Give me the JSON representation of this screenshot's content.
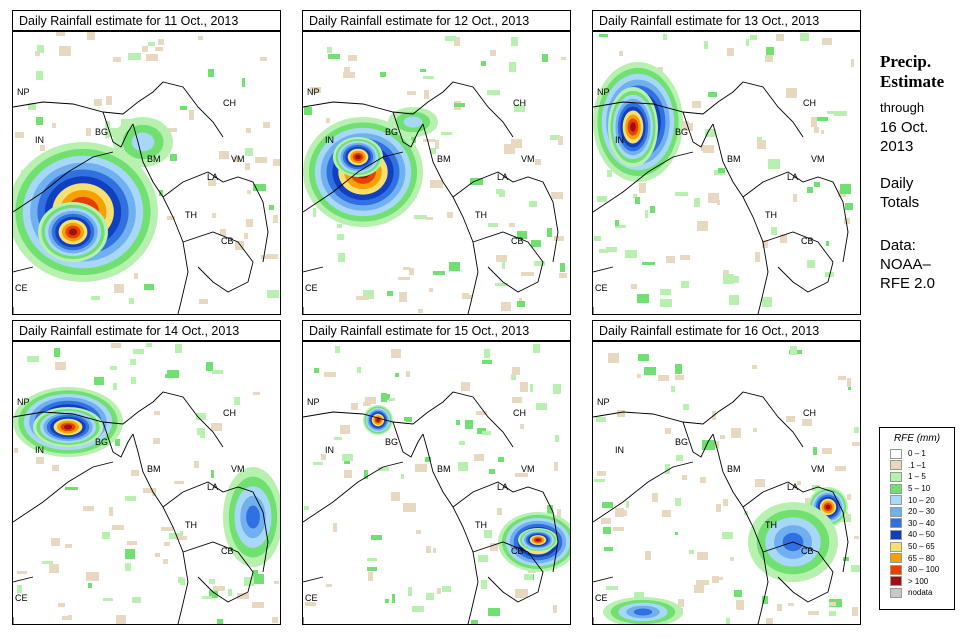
{
  "panels": [
    {
      "title": "Daily Rainfall estimate for  11 Oct., 2013",
      "labels": {
        "NP": "NP",
        "IN": "IN",
        "BG": "BG",
        "BM": "BM",
        "CH": "CH",
        "VM": "VM",
        "LA": "LA",
        "TH": "TH",
        "CB": "CB",
        "CE": "CE"
      },
      "rain_center": "bay-of-bengal-cyclone"
    },
    {
      "title": "Daily Rainfall estimate for  12 Oct., 2013",
      "labels": {
        "NP": "NP",
        "IN": "IN",
        "BG": "BG",
        "BM": "BM",
        "CH": "CH",
        "VM": "VM",
        "LA": "LA",
        "TH": "TH",
        "CB": "CB",
        "CE": "CE"
      },
      "rain_center": "cyclone-near-coast"
    },
    {
      "title": "Daily Rainfall estimate for  13 Oct., 2013",
      "labels": {
        "NP": "NP",
        "IN": "IN",
        "BG": "BG",
        "BM": "BM",
        "CH": "CH",
        "VM": "VM",
        "LA": "LA",
        "TH": "TH",
        "CB": "CB",
        "CE": "CE"
      },
      "rain_center": "landfall-india"
    },
    {
      "title": "Daily Rainfall estimate for  14 Oct., 2013",
      "labels": {
        "NP": "NP",
        "IN": "IN",
        "BG": "BG",
        "BM": "BM",
        "CH": "CH",
        "VM": "VM",
        "LA": "LA",
        "TH": "TH",
        "CB": "CB",
        "CE": "CE"
      },
      "rain_center": "north-india-nepal"
    },
    {
      "title": "Daily Rainfall estimate for  15 Oct., 2013",
      "labels": {
        "NP": "NP",
        "IN": "IN",
        "BG": "BG",
        "BM": "BM",
        "CH": "CH",
        "VM": "VM",
        "LA": "LA",
        "TH": "TH",
        "CB": "CB",
        "CE": "CE"
      },
      "rain_center": "thailand-cambodia"
    },
    {
      "title": "Daily Rainfall estimate for  16 Oct., 2013",
      "labels": {
        "NP": "NP",
        "IN": "IN",
        "BG": "BG",
        "BM": "BM",
        "CH": "CH",
        "VM": "VM",
        "LA": "LA",
        "TH": "TH",
        "CB": "CB",
        "CE": "CE"
      },
      "rain_center": "laos-vietnam"
    }
  ],
  "side": {
    "title_line1": "Precip.",
    "title_line2": "Estimate",
    "through": "through",
    "date_line1": "16 Oct.",
    "date_line2": "2013",
    "daily_line1": "Daily",
    "daily_line2": "Totals",
    "data_line1": "Data:",
    "data_line2": "NOAA–",
    "data_line3": "RFE 2.0"
  },
  "legend": {
    "title": "RFE (mm)",
    "items": [
      {
        "label": "0 – 1",
        "color": "#ffffff"
      },
      {
        "label": ".1 –1",
        "color": "#e8d8c0"
      },
      {
        "label": "1 – 5",
        "color": "#b8f0b0"
      },
      {
        "label": "5 – 10",
        "color": "#70e070"
      },
      {
        "label": "10 – 20",
        "color": "#a8d8f8"
      },
      {
        "label": "20 – 30",
        "color": "#70b0f0"
      },
      {
        "label": "30 – 40",
        "color": "#3070e0"
      },
      {
        "label": "40 – 50",
        "color": "#1040c0"
      },
      {
        "label": "50 – 65",
        "color": "#f8e070"
      },
      {
        "label": "65 – 80",
        "color": "#f8a000"
      },
      {
        "label": "80 – 100",
        "color": "#e84000"
      },
      {
        "label": "> 100",
        "color": "#a01010"
      },
      {
        "label": "nodata",
        "color": "#c8c8c8"
      }
    ]
  }
}
